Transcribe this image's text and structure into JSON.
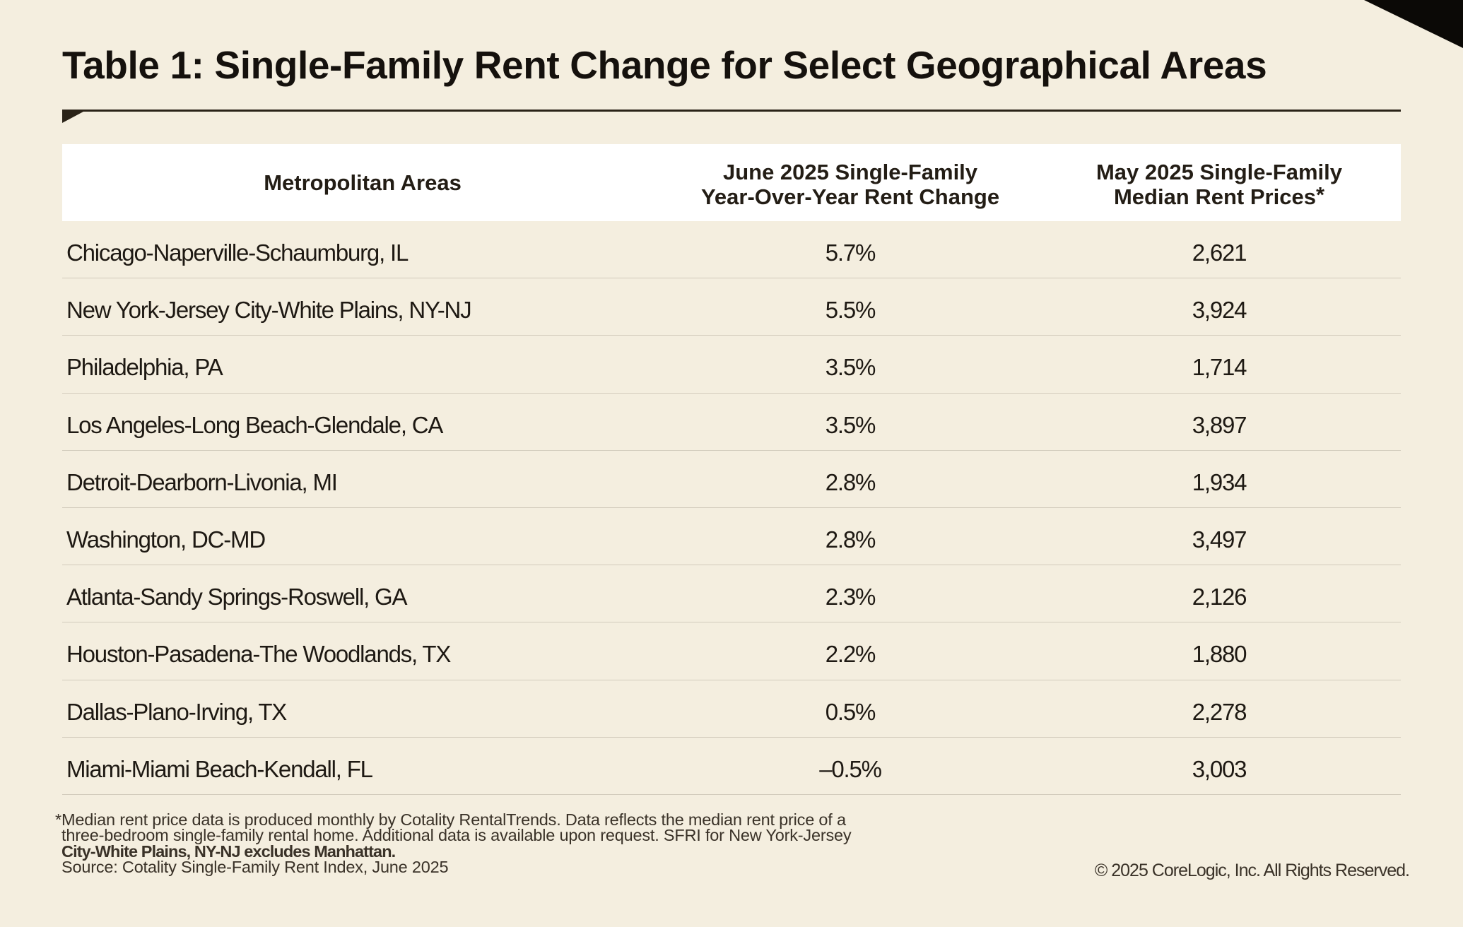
{
  "title": "Table 1: Single-Family Rent Change for Select Geographical Areas",
  "chart_data": {
    "type": "table",
    "title": "Table 1: Single-Family Rent Change for Select Geographical Areas",
    "columns": [
      "Metropolitan Areas",
      "June 2025 Single-Family Year-Over-Year Rent Change",
      "May 2025 Single-Family Median Rent Prices*"
    ],
    "rows": [
      [
        "Chicago-Naperville-Schaumburg, IL",
        "5.7%",
        "2,621"
      ],
      [
        "New York-Jersey City-White Plains, NY-NJ",
        "5.5%",
        "3,924"
      ],
      [
        "Philadelphia, PA",
        "3.5%",
        "1,714"
      ],
      [
        "Los Angeles-Long Beach-Glendale, CA",
        "3.5%",
        "3,897"
      ],
      [
        "Detroit-Dearborn-Livonia, MI",
        "2.8%",
        "1,934"
      ],
      [
        "Washington, DC-MD",
        "2.8%",
        "3,497"
      ],
      [
        "Atlanta-Sandy Springs-Roswell, GA",
        "2.3%",
        "2,126"
      ],
      [
        "Houston-Pasadena-The Woodlands, TX",
        "2.2%",
        "1,880"
      ],
      [
        "Dallas-Plano-Irving, TX",
        "0.5%",
        "2,278"
      ],
      [
        "Miami-Miami Beach-Kendall, FL",
        "–0.5%",
        "3,003"
      ]
    ]
  },
  "header": {
    "col1": "Metropolitan Areas",
    "col2_line1": "June 2025 Single-Family",
    "col2_line2": "Year-Over-Year Rent Change",
    "col3_line1": "May 2025 Single-Family",
    "col3_line2": "Median Rent Prices",
    "col3_superscript": "*"
  },
  "footnote": {
    "marker": "*",
    "line1": "Median rent price data is produced monthly by Cotality RentalTrends. Data reflects the median rent price of a",
    "line2": "three-bedroom single-family rental home. Additional data is available upon request. SFRI for New York-Jersey",
    "line3": "City-White Plains, NY-NJ excludes Manhattan.",
    "source": "Source: Cotality Single-Family Rent Index, June 2025"
  },
  "copyright": "© 2025 CoreLogic, Inc. All Rights Reserved.",
  "colors": {
    "background": "#f4eedf",
    "header_background": "#ffffff",
    "text": "#1e1913",
    "rule": "#2a2318",
    "separator": "#d2cbbc",
    "corner_triangle": "#0b0906"
  }
}
